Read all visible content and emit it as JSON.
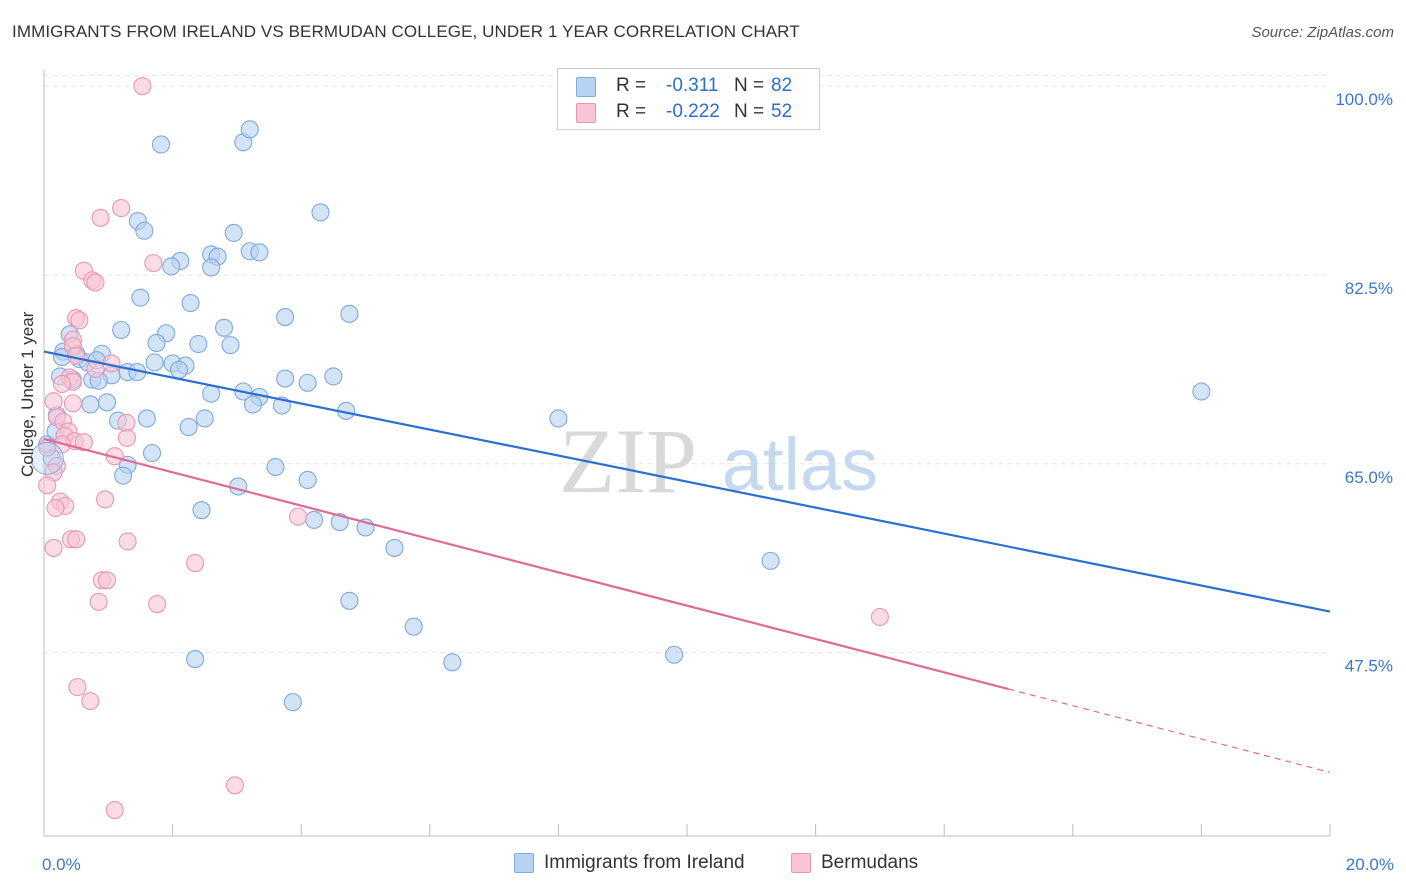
{
  "header": {
    "title": "IMMIGRANTS FROM IRELAND VS BERMUDAN COLLEGE, UNDER 1 YEAR CORRELATION CHART",
    "source": "Source: ZipAtlas.com"
  },
  "watermark": {
    "text_zip": "ZIP",
    "text_atlas": "atlas"
  },
  "legend": {
    "rows": [
      {
        "r_label": "R =",
        "r_value": "-0.311",
        "n_label": "N =",
        "n_value": "82"
      },
      {
        "r_label": "R =",
        "r_value": "-0.222",
        "n_label": "N =",
        "n_value": "52"
      }
    ]
  },
  "bottom_legend": {
    "items": [
      {
        "label": "Immigrants from Ireland"
      },
      {
        "label": "Bermudans"
      }
    ]
  },
  "colors": {
    "blue_fill": "#b8d2f2",
    "blue_stroke": "#7fa8dc",
    "blue_line": "#2b6fd0",
    "pink_fill": "#f8c4d6",
    "pink_stroke": "#e996b4",
    "pink_line": "#e06a97",
    "axis_text": "#3b78cc",
    "grid": "#e6e6e6"
  },
  "chart_data": {
    "type": "scatter",
    "title": "IMMIGRANTS FROM IRELAND VS BERMUDAN COLLEGE, UNDER 1 YEAR CORRELATION CHART",
    "xlabel": "",
    "ylabel": "College, Under 1 year",
    "xlim": [
      0,
      20
    ],
    "ylim": [
      30.5,
      101.5
    ],
    "x_tick_labels": [
      {
        "value": 0,
        "label": "0.0%"
      },
      {
        "value": 20,
        "label": "20.0%"
      }
    ],
    "x_minor_ticks": [
      2,
      4,
      6,
      8,
      10,
      12,
      14,
      16,
      18,
      20
    ],
    "y_ticks": [
      {
        "value": 47.5,
        "label": "47.5%"
      },
      {
        "value": 65.0,
        "label": "65.0%"
      },
      {
        "value": 82.5,
        "label": "82.5%"
      },
      {
        "value": 100.0,
        "label": "100.0%"
      }
    ],
    "grid": true,
    "legend_placement": "top-center",
    "series": [
      {
        "name": "Immigrants from Ireland",
        "color": "#b8d2f2",
        "trend": {
          "x0": 0,
          "y0": 75.4,
          "x1": 20,
          "y1": 51.3,
          "dashed_from": null
        },
        "points": [
          [
            1.82,
            94.6
          ],
          [
            3.1,
            94.8
          ],
          [
            3.2,
            96.0
          ],
          [
            4.3,
            88.3
          ],
          [
            1.46,
            87.5
          ],
          [
            1.56,
            86.6
          ],
          [
            2.95,
            86.4
          ],
          [
            2.12,
            83.8
          ],
          [
            2.6,
            84.4
          ],
          [
            2.7,
            84.2
          ],
          [
            3.2,
            84.7
          ],
          [
            3.35,
            84.6
          ],
          [
            1.98,
            83.3
          ],
          [
            2.6,
            83.2
          ],
          [
            1.5,
            80.4
          ],
          [
            2.28,
            79.9
          ],
          [
            4.75,
            78.9
          ],
          [
            3.75,
            78.6
          ],
          [
            1.2,
            77.4
          ],
          [
            2.8,
            77.6
          ],
          [
            0.4,
            77.0
          ],
          [
            1.9,
            77.1
          ],
          [
            1.75,
            76.2
          ],
          [
            2.4,
            76.1
          ],
          [
            2.9,
            76.0
          ],
          [
            0.3,
            75.4
          ],
          [
            0.5,
            75.2
          ],
          [
            0.9,
            75.2
          ],
          [
            0.28,
            74.9
          ],
          [
            0.55,
            74.7
          ],
          [
            0.68,
            74.4
          ],
          [
            0.82,
            74.6
          ],
          [
            1.72,
            74.4
          ],
          [
            2.0,
            74.3
          ],
          [
            2.2,
            74.1
          ],
          [
            2.1,
            73.7
          ],
          [
            1.3,
            73.5
          ],
          [
            1.45,
            73.5
          ],
          [
            1.05,
            73.2
          ],
          [
            0.25,
            73.1
          ],
          [
            0.45,
            72.8
          ],
          [
            0.75,
            72.8
          ],
          [
            0.85,
            72.7
          ],
          [
            3.75,
            72.9
          ],
          [
            4.5,
            73.1
          ],
          [
            4.1,
            72.5
          ],
          [
            3.1,
            71.7
          ],
          [
            2.6,
            71.5
          ],
          [
            3.35,
            71.2
          ],
          [
            0.72,
            70.5
          ],
          [
            0.98,
            70.7
          ],
          [
            3.25,
            70.5
          ],
          [
            3.7,
            70.4
          ],
          [
            4.7,
            69.9
          ],
          [
            0.2,
            69.5
          ],
          [
            1.15,
            69.0
          ],
          [
            1.6,
            69.2
          ],
          [
            2.5,
            69.2
          ],
          [
            2.25,
            68.4
          ],
          [
            8.0,
            69.2
          ],
          [
            18.0,
            71.7
          ],
          [
            1.68,
            66.0
          ],
          [
            1.3,
            64.9
          ],
          [
            3.6,
            64.7
          ],
          [
            1.23,
            63.9
          ],
          [
            4.1,
            63.5
          ],
          [
            3.02,
            62.9
          ],
          [
            2.45,
            60.7
          ],
          [
            4.2,
            59.8
          ],
          [
            4.6,
            59.6
          ],
          [
            5.0,
            59.1
          ],
          [
            5.45,
            57.2
          ],
          [
            11.3,
            56.0
          ],
          [
            4.75,
            52.3
          ],
          [
            5.75,
            49.9
          ],
          [
            9.8,
            47.3
          ],
          [
            2.35,
            46.9
          ],
          [
            6.35,
            46.6
          ],
          [
            3.87,
            42.9
          ],
          [
            0.05,
            66.8
          ],
          [
            0.12,
            65.5
          ],
          [
            0.18,
            68.0
          ]
        ]
      },
      {
        "name": "Bermudans",
        "color": "#f8c4d6",
        "trend": {
          "x0": 0,
          "y0": 67.3,
          "x1": 20,
          "y1": 36.4,
          "dashed_from": 15.0
        },
        "points": [
          [
            1.53,
            100.0
          ],
          [
            1.2,
            88.7
          ],
          [
            0.88,
            87.8
          ],
          [
            1.7,
            83.6
          ],
          [
            0.62,
            82.9
          ],
          [
            0.75,
            82.0
          ],
          [
            0.8,
            81.8
          ],
          [
            0.5,
            78.5
          ],
          [
            0.55,
            78.3
          ],
          [
            0.45,
            76.5
          ],
          [
            0.45,
            75.9
          ],
          [
            0.5,
            75.0
          ],
          [
            1.05,
            74.3
          ],
          [
            0.8,
            73.8
          ],
          [
            0.4,
            73.0
          ],
          [
            0.45,
            72.6
          ],
          [
            0.28,
            72.4
          ],
          [
            0.15,
            70.8
          ],
          [
            0.45,
            70.6
          ],
          [
            0.2,
            69.3
          ],
          [
            0.3,
            68.9
          ],
          [
            1.28,
            68.8
          ],
          [
            0.38,
            68.0
          ],
          [
            0.32,
            67.6
          ],
          [
            1.29,
            67.4
          ],
          [
            0.48,
            67.1
          ],
          [
            0.62,
            67.0
          ],
          [
            0.28,
            66.8
          ],
          [
            0.05,
            66.5
          ],
          [
            1.1,
            65.7
          ],
          [
            0.2,
            64.8
          ],
          [
            0.15,
            64.2
          ],
          [
            0.05,
            63.0
          ],
          [
            0.95,
            61.7
          ],
          [
            0.25,
            61.5
          ],
          [
            0.33,
            61.1
          ],
          [
            0.18,
            60.9
          ],
          [
            3.95,
            60.1
          ],
          [
            1.3,
            57.8
          ],
          [
            0.42,
            58.0
          ],
          [
            0.5,
            58.0
          ],
          [
            0.15,
            57.2
          ],
          [
            2.35,
            55.8
          ],
          [
            0.9,
            54.2
          ],
          [
            0.98,
            54.2
          ],
          [
            0.85,
            52.2
          ],
          [
            1.76,
            52.0
          ],
          [
            13.0,
            50.8
          ],
          [
            0.52,
            44.3
          ],
          [
            0.72,
            43.0
          ],
          [
            2.97,
            35.2
          ],
          [
            1.1,
            32.9
          ]
        ]
      }
    ]
  }
}
